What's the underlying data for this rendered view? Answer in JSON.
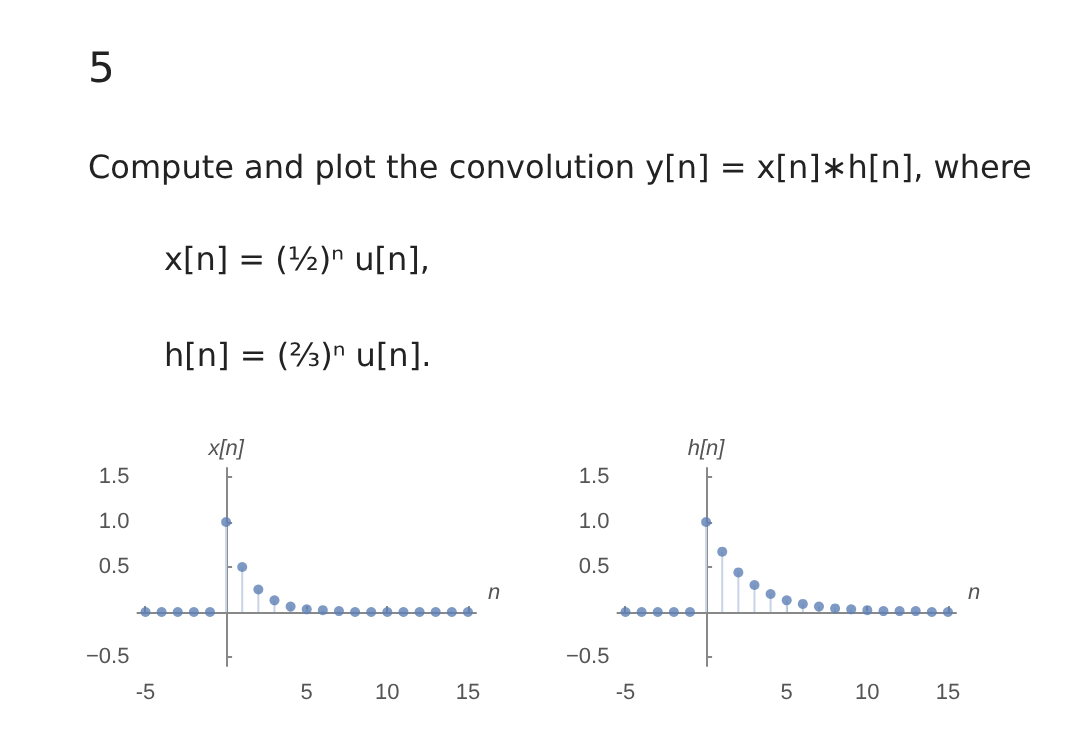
{
  "chart_data": [
    {
      "type": "lollipop",
      "title": "5",
      "subtitle": "Compute and plot the convolution y[n] = x[n]∗h[n], where",
      "annotations": [
        "x[n] = (½)ⁿ u[n],",
        "h[n] = (⅔)ⁿ u[n]."
      ],
      "xlabel": "n",
      "ylabel": "x[n]",
      "color": "#5e81b5",
      "marker": "circle",
      "x": [
        -5,
        -4,
        -3,
        -2,
        -1,
        0,
        1,
        2,
        3,
        4,
        5,
        6,
        7,
        8,
        9,
        10,
        11,
        12,
        13,
        14,
        15
      ],
      "values": [
        0,
        0,
        0,
        0,
        0,
        1,
        0.5,
        0.25,
        0.13,
        0.06,
        0.03,
        0.02,
        0.01,
        0,
        0,
        0,
        0,
        0,
        0,
        0,
        0
      ],
      "xlim": [
        -5.5,
        15.5
      ],
      "xticks": [
        -5,
        5,
        10,
        15
      ],
      "ylim": [
        -0.6,
        1.6
      ],
      "yticks": [
        {
          "value": -0.5,
          "label": "−0.5"
        },
        {
          "value": 0.5,
          "label": "0.5"
        },
        {
          "value": 1,
          "label": "1.0"
        },
        {
          "value": 1.5,
          "label": "1.5"
        }
      ]
    },
    {
      "type": "lollipop",
      "xlabel": "n",
      "ylabel": "h[n]",
      "color": "#5e81b5",
      "marker": "circle",
      "x": [
        -5,
        -4,
        -3,
        -2,
        -1,
        0,
        1,
        2,
        3,
        4,
        5,
        6,
        7,
        8,
        9,
        10,
        11,
        12,
        13,
        14,
        15
      ],
      "values": [
        0,
        0,
        0,
        0,
        0,
        1,
        0.67,
        0.44,
        0.3,
        0.2,
        0.13,
        0.09,
        0.06,
        0.04,
        0.03,
        0.02,
        0.01,
        0.01,
        0.01,
        0,
        0
      ],
      "xlim": [
        -5.5,
        15.5
      ],
      "xticks": [
        -5,
        5,
        10,
        15
      ],
      "ylim": [
        -0.6,
        1.6
      ],
      "yticks": [
        {
          "value": -0.5,
          "label": "−0.5"
        },
        {
          "value": 0.5,
          "label": "0.5"
        },
        {
          "value": 1,
          "label": "1.0"
        },
        {
          "value": 1.5,
          "label": "1.5"
        }
      ]
    }
  ]
}
